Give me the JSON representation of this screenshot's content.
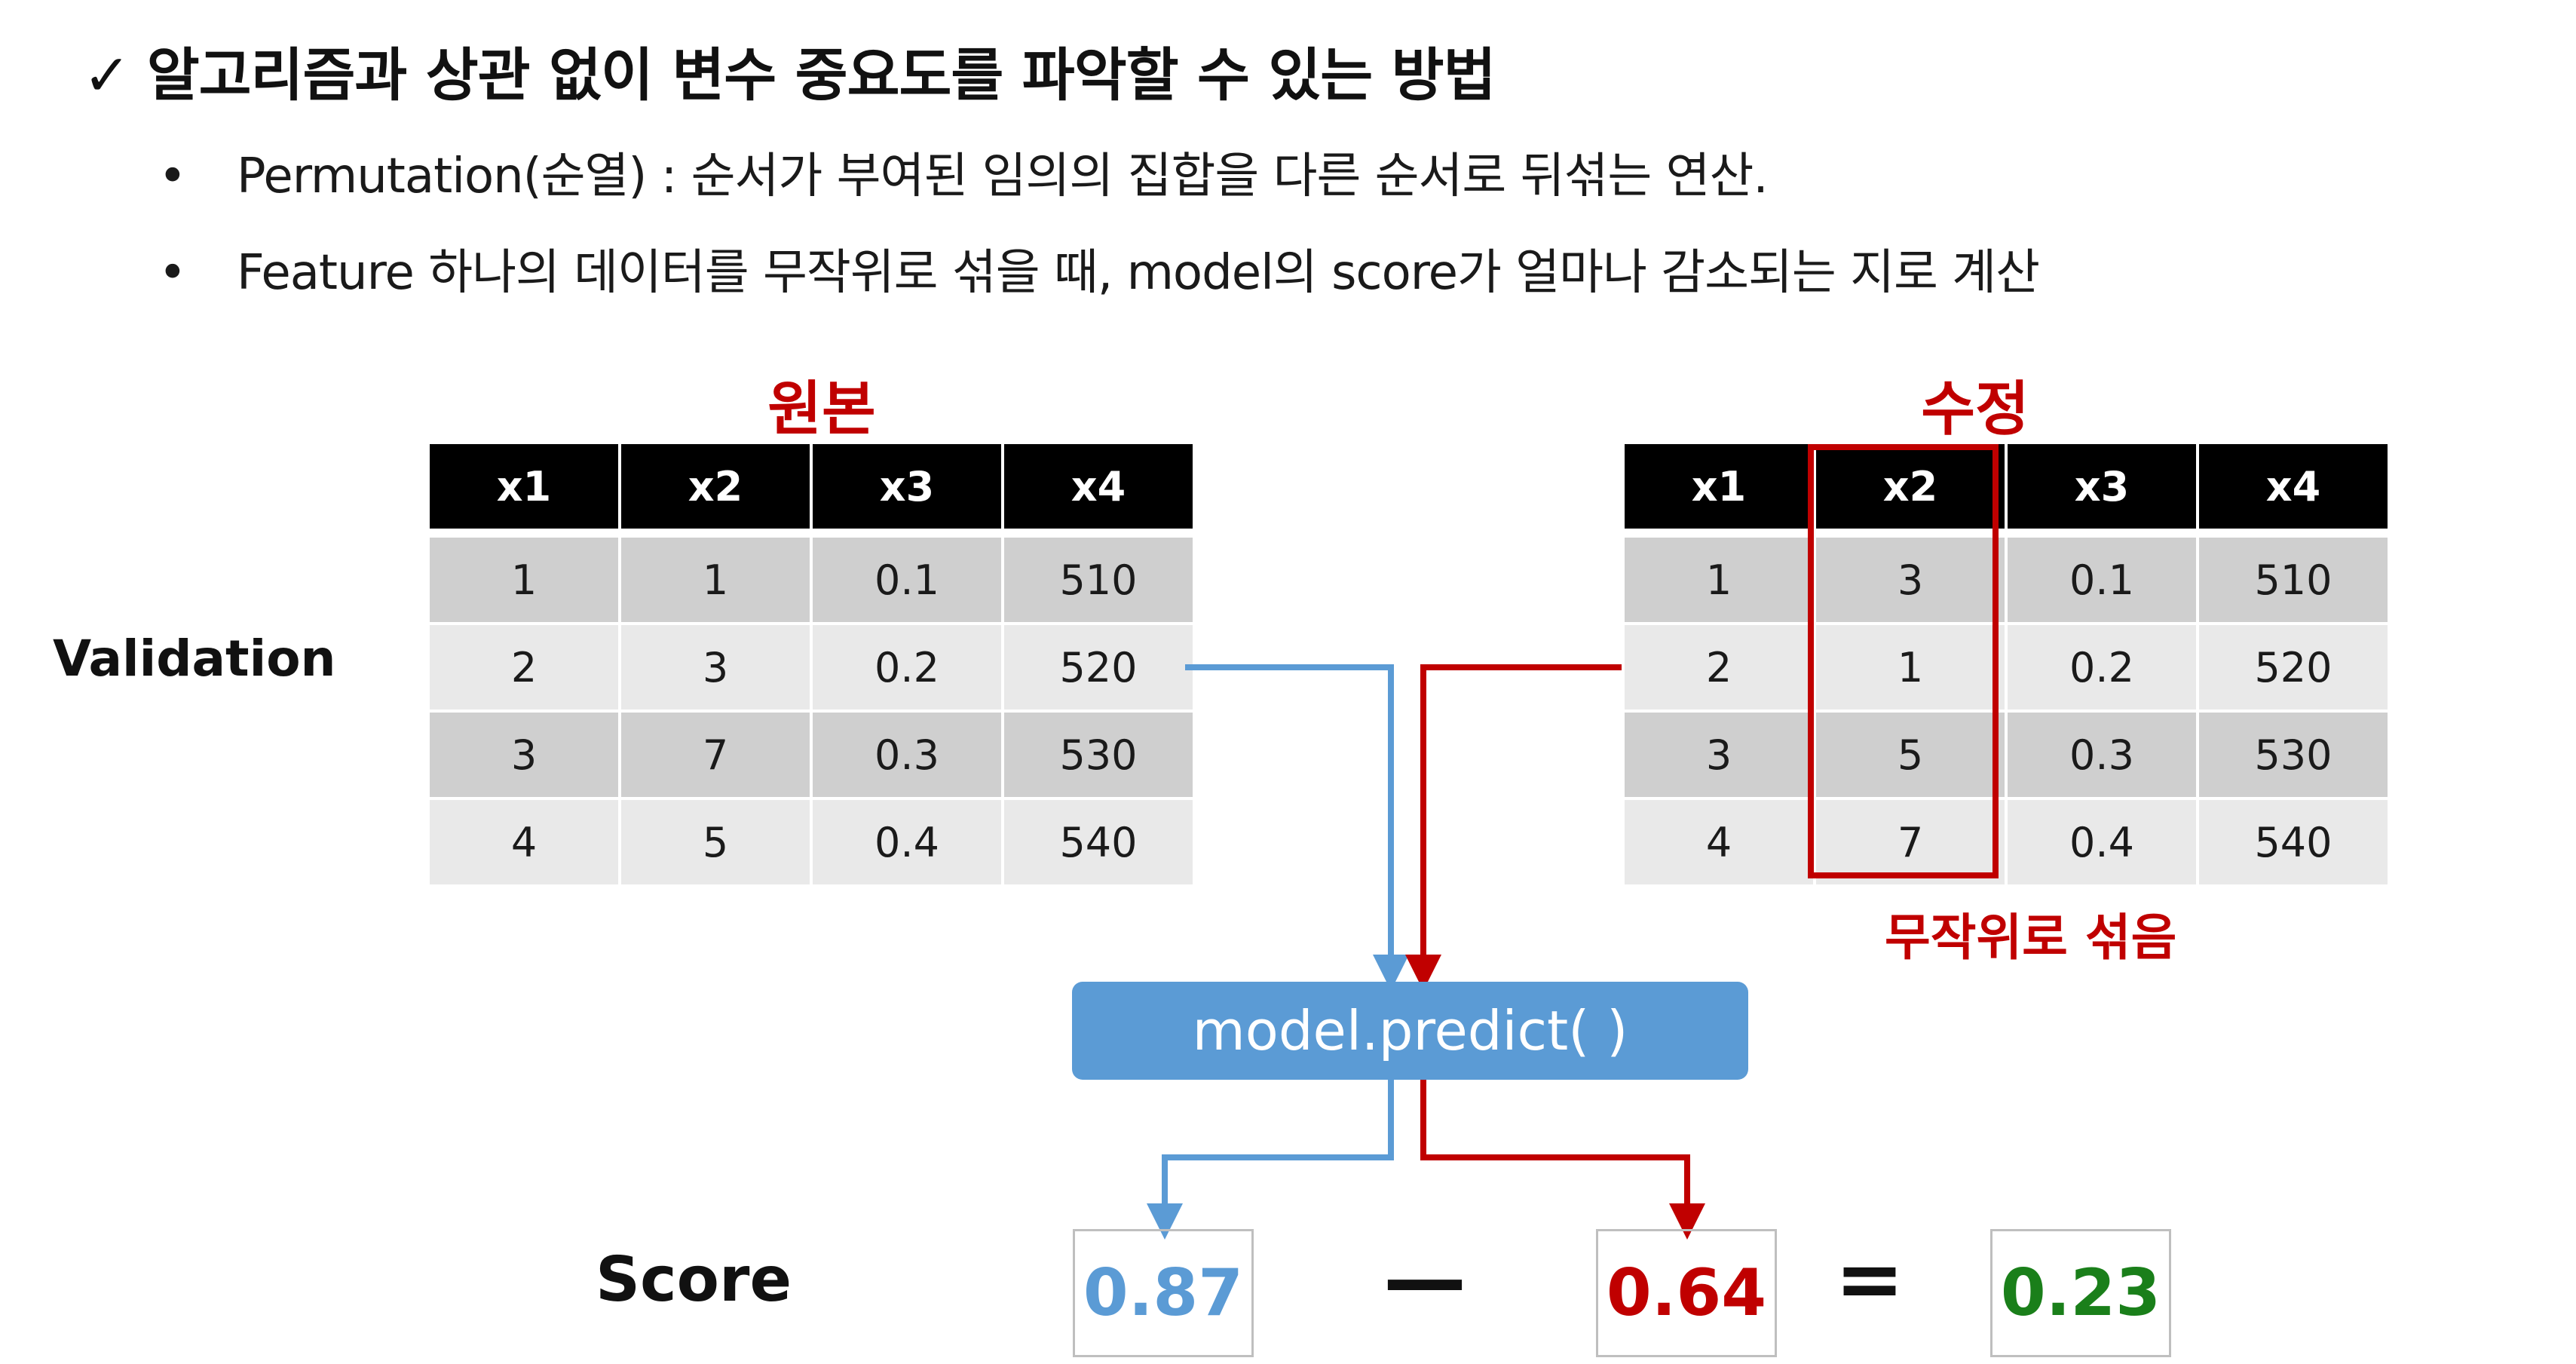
{
  "heading": "알고리즘과 상관 없이 변수 중요도를 파악할 수 있는 방법",
  "heading_icon": "check-mark-icon",
  "bullets": [
    "Permutation(순열) : 순서가 부여된 임의의 집합을 다른 순서로 뒤섞는 연산.",
    "Feature 하나의 데이터를 무작위로 섞을 때, model의 score가 얼마나 감소되는 지로 계산"
  ],
  "bullet_glyph": "•",
  "validation_label": "Validation",
  "original_table": {
    "title": "원본",
    "headers": [
      "x1",
      "x2",
      "x3",
      "x4"
    ],
    "rows": [
      [
        "1",
        "1",
        "0.1",
        "510"
      ],
      [
        "2",
        "3",
        "0.2",
        "520"
      ],
      [
        "3",
        "7",
        "0.3",
        "530"
      ],
      [
        "4",
        "5",
        "0.4",
        "540"
      ]
    ]
  },
  "modified_table": {
    "title": "수정",
    "headers": [
      "x1",
      "x2",
      "x3",
      "x4"
    ],
    "rows": [
      [
        "1",
        "3",
        "0.1",
        "510"
      ],
      [
        "2",
        "1",
        "0.2",
        "520"
      ],
      [
        "3",
        "5",
        "0.3",
        "530"
      ],
      [
        "4",
        "7",
        "0.4",
        "540"
      ]
    ],
    "highlighted_column": "x2",
    "highlight_caption": "무작위로 섞음"
  },
  "predict_label": "model.predict( )",
  "score": {
    "label": "Score",
    "original": "0.87",
    "minus": "—",
    "shuffled": "0.64",
    "equals": "=",
    "result": "0.23"
  },
  "colors": {
    "blue": "#5b9bd5",
    "red": "#c00000",
    "green": "#1a7f1a",
    "header_bg": "#000000",
    "row_dark": "#cfcfcf",
    "row_light": "#e9e9e9"
  }
}
